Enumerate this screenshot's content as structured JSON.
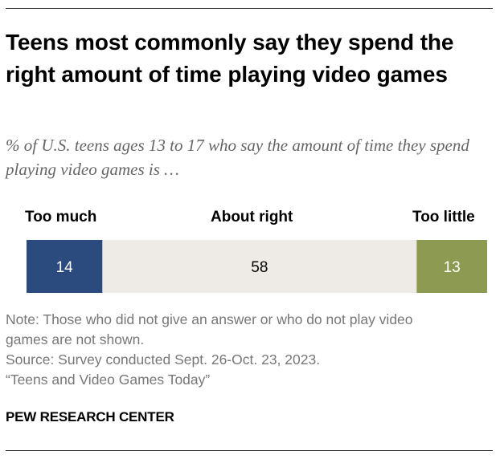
{
  "title": "Teens most commonly say they spend the right amount of time playing video games",
  "subtitle": "% of U.S. teens ages 13 to 17 who say the amount of time they spend playing video games is …",
  "chart_data": {
    "type": "bar",
    "orientation": "horizontal-stacked",
    "categories": [
      "Too much",
      "About right",
      "Too little"
    ],
    "values": [
      14,
      58,
      13
    ],
    "colors": [
      "#2b4a7e",
      "#eeebe6",
      "#8c9a52"
    ],
    "label_colors": [
      "#ffffff",
      "#000000",
      "#ffffff"
    ],
    "legend": "above-bar"
  },
  "notes": {
    "note_line1": "Note: Those who did not give an answer or who do not play video",
    "note_line2": "games are not shown.",
    "source": "Source: Survey conducted Sept. 26-Oct. 23, 2023.",
    "report": "“Teens and Video Games Today”"
  },
  "branding": {
    "org": "PEW RESEARCH CENTER"
  }
}
